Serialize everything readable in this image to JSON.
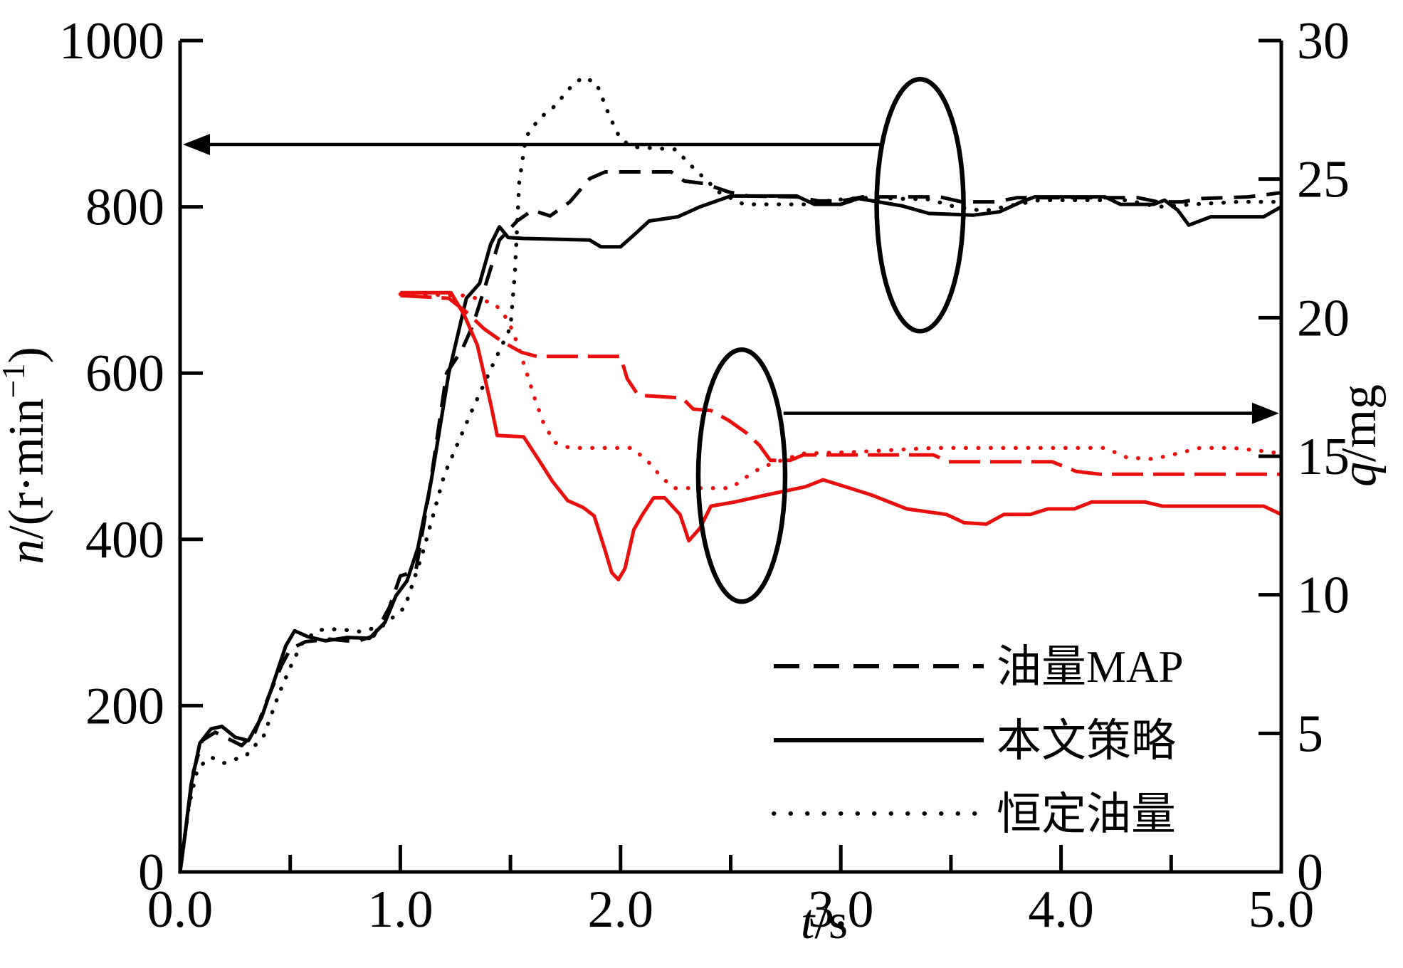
{
  "chart_data": {
    "type": "line",
    "title": "",
    "x_axis": {
      "label_italic": "t",
      "label_rest": "/s",
      "range": [
        0,
        5
      ],
      "major_tick_values": [
        0,
        1,
        2,
        3,
        4,
        5
      ],
      "major_tick_labels": [
        "0.0",
        "1.0",
        "2.0",
        "3.0",
        "4.0",
        "5.0"
      ],
      "minor_tick_values": [
        0.5,
        1.5,
        2.5,
        3.5,
        4.5
      ]
    },
    "left_axis": {
      "title_italic": "n",
      "title_rest": "/(r·min",
      "title_sup": "−1",
      "title_end": ")",
      "range": [
        0,
        1000
      ],
      "ticks": [
        0,
        200,
        400,
        600,
        800,
        1000
      ]
    },
    "right_axis": {
      "title_italic": "q",
      "title_rest": "/mg",
      "range": [
        0,
        30
      ],
      "ticks": [
        0,
        5,
        10,
        15,
        20,
        25,
        30
      ]
    },
    "grid": false,
    "legend_position": "lower-right-inside",
    "legend": [
      {
        "label": "油量MAP",
        "swatch_class": "lswatch dashed"
      },
      {
        "label": "本文策略",
        "swatch_class": "lswatch solid"
      },
      {
        "label": "恒定油量",
        "swatch_class": "lswatch dotted"
      }
    ],
    "series": [
      {
        "name": "转速 油量MAP",
        "axis": "left",
        "color": "black",
        "style": "dashed",
        "points": [
          [
            0,
            0
          ],
          [
            0.03,
            60
          ],
          [
            0.06,
            120
          ],
          [
            0.1,
            158
          ],
          [
            0.16,
            168
          ],
          [
            0.22,
            160
          ],
          [
            0.28,
            152
          ],
          [
            0.34,
            168
          ],
          [
            0.4,
            210
          ],
          [
            0.46,
            248
          ],
          [
            0.5,
            268
          ],
          [
            0.57,
            277
          ],
          [
            0.68,
            280
          ],
          [
            0.8,
            277
          ],
          [
            0.88,
            284
          ],
          [
            0.95,
            318
          ],
          [
            1.0,
            356
          ],
          [
            1.07,
            362
          ],
          [
            1.13,
            455
          ],
          [
            1.21,
            600
          ],
          [
            1.28,
            628
          ],
          [
            1.33,
            658
          ],
          [
            1.38,
            700
          ],
          [
            1.45,
            760
          ],
          [
            1.53,
            783
          ],
          [
            1.6,
            796
          ],
          [
            1.68,
            789
          ],
          [
            1.77,
            806
          ],
          [
            1.86,
            834
          ],
          [
            1.93,
            842
          ],
          [
            2.23,
            842
          ],
          [
            2.29,
            831
          ],
          [
            2.38,
            828
          ],
          [
            2.49,
            818
          ],
          [
            2.58,
            813
          ],
          [
            2.8,
            812
          ],
          [
            2.9,
            807
          ],
          [
            3.0,
            807
          ],
          [
            3.1,
            812
          ],
          [
            3.45,
            812
          ],
          [
            3.55,
            806
          ],
          [
            3.7,
            806
          ],
          [
            3.8,
            811
          ],
          [
            4.35,
            811
          ],
          [
            4.44,
            806
          ],
          [
            4.55,
            806
          ],
          [
            4.64,
            810
          ],
          [
            4.85,
            812
          ],
          [
            5.0,
            817
          ]
        ]
      },
      {
        "name": "转速 本文策略",
        "axis": "left",
        "color": "black",
        "style": "solid",
        "points": [
          [
            0,
            0
          ],
          [
            0.02,
            40
          ],
          [
            0.05,
            105
          ],
          [
            0.09,
            155
          ],
          [
            0.14,
            172
          ],
          [
            0.19,
            175
          ],
          [
            0.25,
            162
          ],
          [
            0.31,
            158
          ],
          [
            0.37,
            186
          ],
          [
            0.43,
            232
          ],
          [
            0.48,
            272
          ],
          [
            0.52,
            290
          ],
          [
            0.58,
            283
          ],
          [
            0.66,
            278
          ],
          [
            0.76,
            282
          ],
          [
            0.86,
            281
          ],
          [
            0.93,
            300
          ],
          [
            0.98,
            332
          ],
          [
            1.03,
            350
          ],
          [
            1.08,
            390
          ],
          [
            1.14,
            470
          ],
          [
            1.22,
            600
          ],
          [
            1.3,
            690
          ],
          [
            1.36,
            708
          ],
          [
            1.41,
            755
          ],
          [
            1.45,
            776
          ],
          [
            1.49,
            763
          ],
          [
            1.56,
            762
          ],
          [
            1.86,
            760
          ],
          [
            1.91,
            752
          ],
          [
            2.0,
            752
          ],
          [
            2.06,
            766
          ],
          [
            2.13,
            783
          ],
          [
            2.26,
            788
          ],
          [
            2.36,
            800
          ],
          [
            2.5,
            813
          ],
          [
            2.8,
            813
          ],
          [
            2.88,
            803
          ],
          [
            3.0,
            803
          ],
          [
            3.08,
            810
          ],
          [
            3.28,
            801
          ],
          [
            3.4,
            792
          ],
          [
            3.6,
            790
          ],
          [
            3.72,
            794
          ],
          [
            3.82,
            806
          ],
          [
            3.88,
            812
          ],
          [
            4.2,
            812
          ],
          [
            4.27,
            803
          ],
          [
            4.42,
            803
          ],
          [
            4.47,
            808
          ],
          [
            4.53,
            796
          ],
          [
            4.58,
            778
          ],
          [
            4.68,
            788
          ],
          [
            4.92,
            788
          ],
          [
            5.0,
            800
          ]
        ]
      },
      {
        "name": "转速 恒定油量",
        "axis": "left",
        "color": "black",
        "style": "dotted",
        "points": [
          [
            0,
            0
          ],
          [
            0.04,
            80
          ],
          [
            0.08,
            125
          ],
          [
            0.14,
            138
          ],
          [
            0.2,
            131
          ],
          [
            0.3,
            140
          ],
          [
            0.38,
            164
          ],
          [
            0.45,
            215
          ],
          [
            0.51,
            252
          ],
          [
            0.56,
            278
          ],
          [
            0.63,
            291
          ],
          [
            0.72,
            292
          ],
          [
            0.82,
            289
          ],
          [
            0.92,
            296
          ],
          [
            1.02,
            318
          ],
          [
            1.1,
            382
          ],
          [
            1.2,
            478
          ],
          [
            1.32,
            552
          ],
          [
            1.42,
            610
          ],
          [
            1.5,
            655
          ],
          [
            1.52,
            720
          ],
          [
            1.54,
            830
          ],
          [
            1.57,
            884
          ],
          [
            1.63,
            906
          ],
          [
            1.7,
            921
          ],
          [
            1.78,
            946
          ],
          [
            1.83,
            956
          ],
          [
            1.89,
            949
          ],
          [
            1.95,
            909
          ],
          [
            2.0,
            881
          ],
          [
            2.06,
            872
          ],
          [
            2.25,
            869
          ],
          [
            2.33,
            847
          ],
          [
            2.45,
            817
          ],
          [
            2.56,
            803
          ],
          [
            2.85,
            803
          ],
          [
            2.96,
            808
          ],
          [
            3.1,
            811
          ],
          [
            3.4,
            809
          ],
          [
            3.52,
            800
          ],
          [
            3.65,
            795
          ],
          [
            3.78,
            802
          ],
          [
            3.9,
            808
          ],
          [
            4.3,
            808
          ],
          [
            4.44,
            800
          ],
          [
            4.6,
            803
          ],
          [
            4.8,
            806
          ],
          [
            5.0,
            806
          ]
        ]
      },
      {
        "name": "油量 油量MAP",
        "axis": "right",
        "color": "red",
        "style": "dashed",
        "points": [
          [
            1.0,
            20.8
          ],
          [
            1.22,
            20.7
          ],
          [
            1.3,
            20.2
          ],
          [
            1.38,
            19.6
          ],
          [
            1.46,
            19.15
          ],
          [
            1.55,
            18.75
          ],
          [
            1.62,
            18.6
          ],
          [
            2.0,
            18.6
          ],
          [
            2.03,
            17.8
          ],
          [
            2.08,
            17.2
          ],
          [
            2.28,
            17.1
          ],
          [
            2.33,
            16.7
          ],
          [
            2.41,
            16.65
          ],
          [
            2.49,
            16.3
          ],
          [
            2.57,
            15.85
          ],
          [
            2.63,
            15.4
          ],
          [
            2.68,
            14.85
          ],
          [
            2.77,
            14.85
          ],
          [
            2.83,
            15.05
          ],
          [
            3.42,
            15.05
          ],
          [
            3.49,
            14.8
          ],
          [
            3.96,
            14.8
          ],
          [
            4.07,
            14.45
          ],
          [
            4.18,
            14.35
          ],
          [
            5.0,
            14.35
          ]
        ]
      },
      {
        "name": "油量 本文策略",
        "axis": "right",
        "color": "red",
        "style": "solid",
        "points": [
          [
            1.0,
            20.9
          ],
          [
            1.23,
            20.9
          ],
          [
            1.29,
            20.1
          ],
          [
            1.35,
            19.0
          ],
          [
            1.41,
            16.9
          ],
          [
            1.44,
            15.75
          ],
          [
            1.56,
            15.7
          ],
          [
            1.63,
            14.85
          ],
          [
            1.69,
            14.1
          ],
          [
            1.76,
            13.4
          ],
          [
            1.83,
            13.15
          ],
          [
            1.88,
            12.85
          ],
          [
            1.93,
            11.6
          ],
          [
            1.96,
            10.8
          ],
          [
            1.99,
            10.55
          ],
          [
            2.02,
            10.95
          ],
          [
            2.06,
            12.35
          ],
          [
            2.1,
            12.9
          ],
          [
            2.15,
            13.5
          ],
          [
            2.2,
            13.5
          ],
          [
            2.27,
            12.9
          ],
          [
            2.31,
            11.95
          ],
          [
            2.36,
            12.4
          ],
          [
            2.41,
            13.2
          ],
          [
            2.52,
            13.35
          ],
          [
            2.66,
            13.6
          ],
          [
            2.84,
            13.9
          ],
          [
            2.92,
            14.15
          ],
          [
            3.02,
            13.9
          ],
          [
            3.14,
            13.6
          ],
          [
            3.3,
            13.1
          ],
          [
            3.48,
            12.9
          ],
          [
            3.56,
            12.6
          ],
          [
            3.66,
            12.55
          ],
          [
            3.74,
            12.9
          ],
          [
            3.86,
            12.9
          ],
          [
            3.94,
            13.1
          ],
          [
            4.06,
            13.1
          ],
          [
            4.14,
            13.35
          ],
          [
            4.38,
            13.35
          ],
          [
            4.46,
            13.2
          ],
          [
            4.92,
            13.2
          ],
          [
            5.0,
            12.9
          ]
        ]
      },
      {
        "name": "油量 恒定油量",
        "axis": "right",
        "color": "red",
        "style": "dotted",
        "points": [
          [
            1.0,
            20.85
          ],
          [
            1.3,
            20.8
          ],
          [
            1.43,
            20.5
          ],
          [
            1.49,
            19.9
          ],
          [
            1.53,
            19.1
          ],
          [
            1.57,
            18.1
          ],
          [
            1.61,
            17.1
          ],
          [
            1.65,
            16.2
          ],
          [
            1.7,
            15.5
          ],
          [
            1.77,
            15.3
          ],
          [
            2.05,
            15.3
          ],
          [
            2.12,
            14.85
          ],
          [
            2.18,
            14.3
          ],
          [
            2.24,
            13.85
          ],
          [
            2.5,
            13.85
          ],
          [
            2.58,
            14.3
          ],
          [
            2.64,
            14.6
          ],
          [
            2.73,
            14.85
          ],
          [
            2.83,
            15.1
          ],
          [
            3.05,
            15.15
          ],
          [
            3.42,
            15.3
          ],
          [
            4.2,
            15.3
          ],
          [
            4.3,
            14.95
          ],
          [
            4.42,
            14.9
          ],
          [
            4.53,
            15.1
          ],
          [
            4.63,
            15.3
          ],
          [
            4.78,
            15.3
          ],
          [
            4.9,
            15.2
          ],
          [
            5.0,
            15.1
          ]
        ]
      }
    ],
    "annotations": [
      {
        "type": "ellipse",
        "name": "speed-band-highlight",
        "axis": "left",
        "center_t": 3.36,
        "center_value": 802
      },
      {
        "type": "ellipse",
        "name": "fuel-band-highlight",
        "axis": "right",
        "center_t": 2.55,
        "center_value": 14.3
      },
      {
        "type": "arrow",
        "name": "arrow-to-speed-axis",
        "axis": "left",
        "value": 875,
        "from_t": 3.18,
        "to_t": 0.013,
        "head": "left"
      },
      {
        "type": "arrow",
        "name": "arrow-to-fuel-axis",
        "axis": "right",
        "value": 16.55,
        "from_t": 2.74,
        "to_t": 4.99,
        "head": "right"
      }
    ],
    "colors": {
      "black_series": "#000000",
      "red_series": "#e8100c"
    }
  }
}
